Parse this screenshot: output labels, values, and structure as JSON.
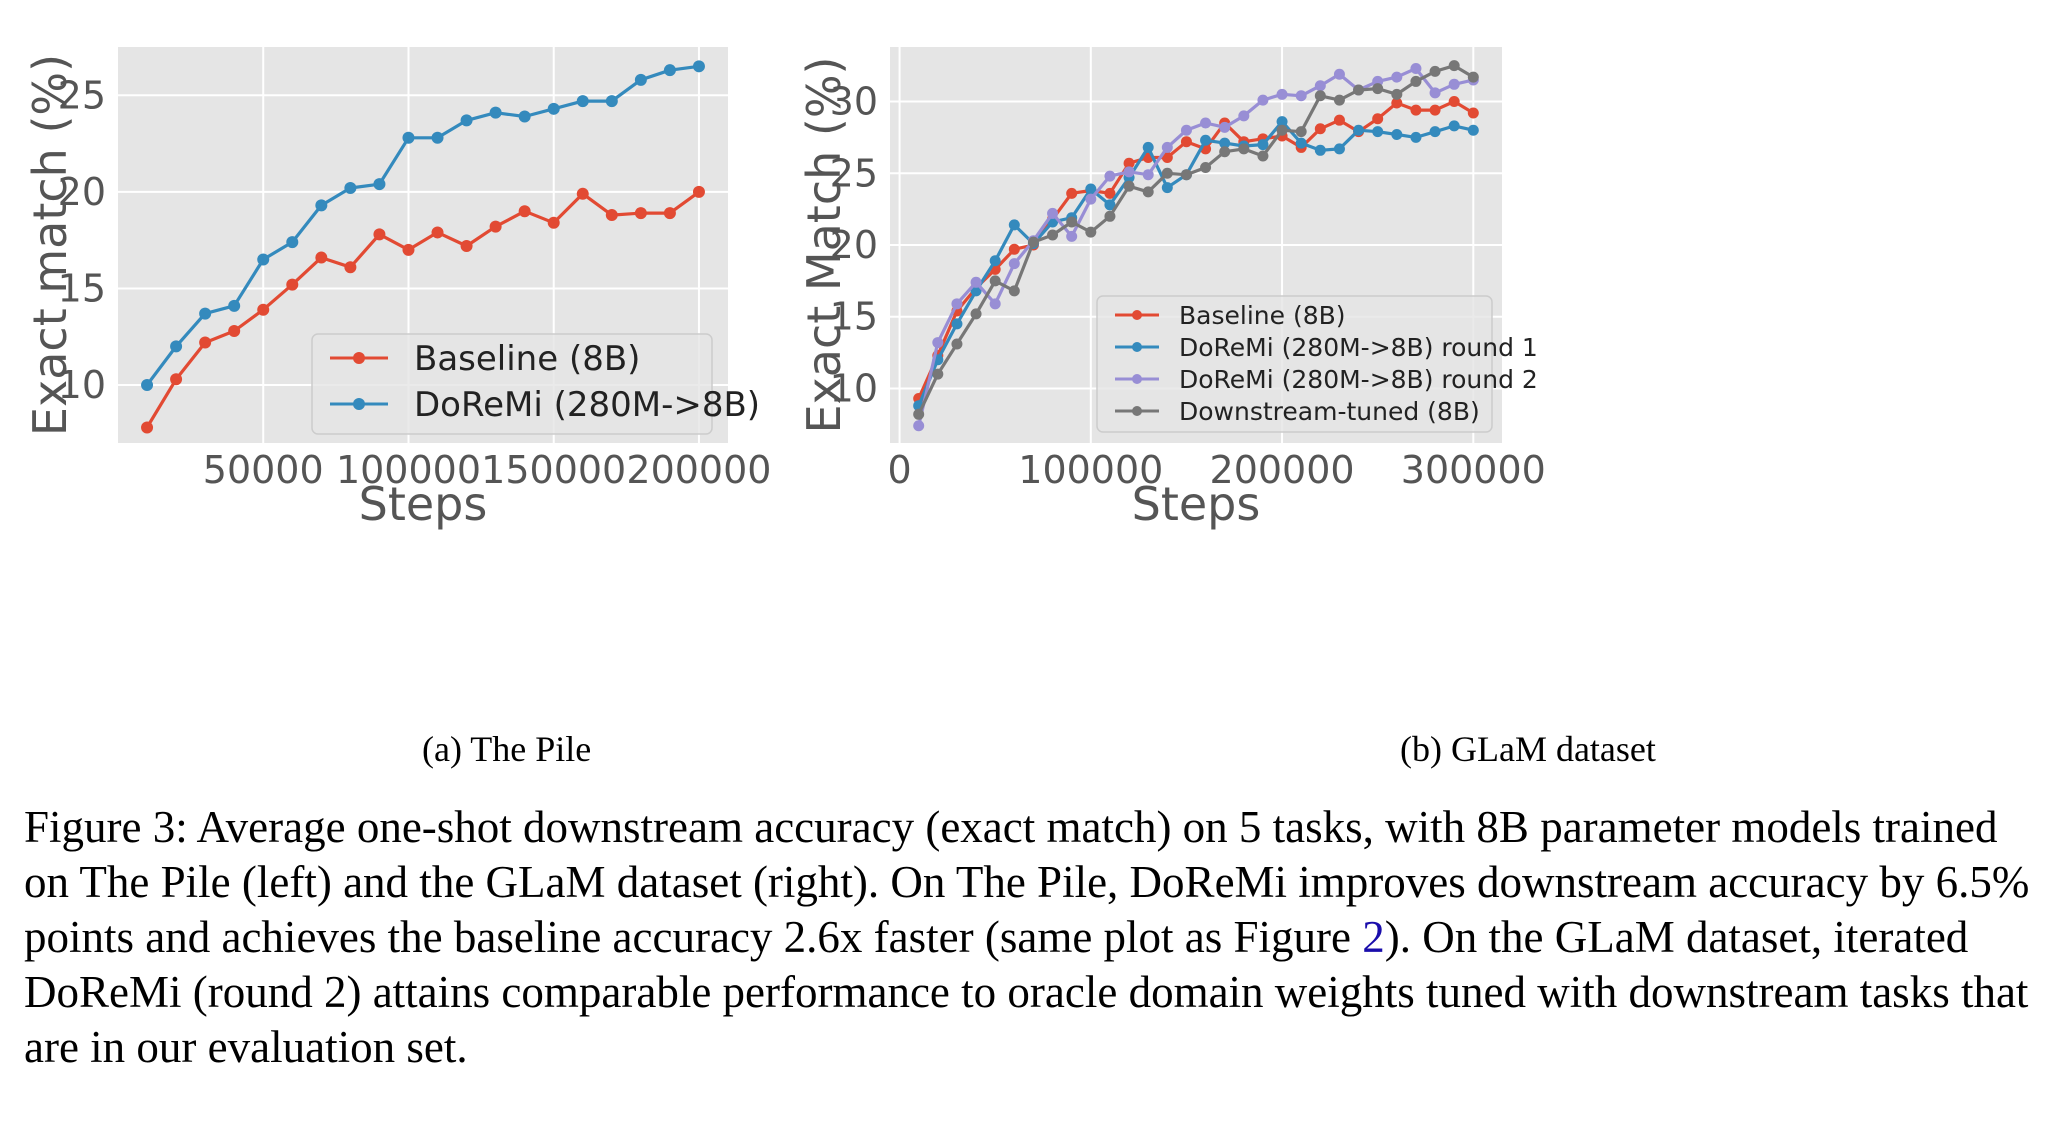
{
  "chart_data": [
    {
      "type": "line",
      "caption": "(a) The Pile",
      "xlabel": "Steps",
      "ylabel": "Exact match (%)",
      "xlim": [
        0,
        210000
      ],
      "ylim": [
        7,
        27.5
      ],
      "xticks": [
        50000,
        100000,
        150000,
        200000
      ],
      "xtick_labels": [
        "50000",
        "100000",
        "150000",
        "200000"
      ],
      "yticks": [
        10,
        15,
        20,
        25
      ],
      "ytick_labels": [
        "10",
        "15",
        "20",
        "25"
      ],
      "grid": true,
      "legend_position": "bottom-right",
      "x": [
        10000,
        20000,
        30000,
        40000,
        50000,
        60000,
        70000,
        80000,
        90000,
        100000,
        110000,
        120000,
        130000,
        140000,
        150000,
        160000,
        170000,
        180000,
        190000,
        200000
      ],
      "series": [
        {
          "name": "Baseline (8B)",
          "color": "#e24a33",
          "values": [
            7.8,
            10.3,
            12.2,
            12.8,
            13.9,
            15.2,
            16.6,
            16.1,
            17.8,
            17.0,
            17.9,
            17.2,
            18.2,
            19.0,
            18.4,
            19.9,
            18.8,
            18.9,
            18.9,
            20.0
          ]
        },
        {
          "name": "DoReMi (280M->8B)",
          "color": "#348abd",
          "values": [
            10.0,
            12.0,
            13.7,
            14.1,
            16.5,
            17.4,
            19.3,
            20.2,
            20.4,
            22.8,
            22.8,
            23.7,
            24.1,
            23.9,
            24.3,
            24.7,
            24.7,
            25.8,
            26.3,
            26.5
          ]
        }
      ]
    },
    {
      "type": "line",
      "caption": "(b) GLaM dataset",
      "xlabel": "Steps",
      "ylabel": "Exact Match (%)",
      "xlim": [
        -5000,
        315000
      ],
      "ylim": [
        6.2,
        33.8
      ],
      "xticks": [
        0,
        100000,
        200000,
        300000
      ],
      "xtick_labels": [
        "0",
        "100000",
        "200000",
        "300000"
      ],
      "yticks": [
        10,
        15,
        20,
        25,
        30
      ],
      "ytick_labels": [
        "10",
        "15",
        "20",
        "25",
        "30"
      ],
      "grid": true,
      "legend_position": "center-right",
      "x": [
        10000,
        20000,
        30000,
        40000,
        50000,
        60000,
        70000,
        80000,
        90000,
        100000,
        110000,
        120000,
        130000,
        140000,
        150000,
        160000,
        170000,
        180000,
        190000,
        200000,
        210000,
        220000,
        230000,
        240000,
        250000,
        260000,
        270000,
        280000,
        290000,
        300000
      ],
      "series": [
        {
          "name": "Baseline (8B)",
          "color": "#e24a33",
          "values": [
            9.3,
            12.3,
            15.4,
            17.0,
            18.3,
            19.7,
            20.0,
            21.8,
            23.6,
            23.8,
            23.6,
            25.7,
            26.1,
            26.1,
            27.2,
            26.7,
            28.5,
            27.2,
            27.4,
            27.6,
            26.8,
            28.1,
            28.7,
            27.9,
            28.8,
            29.9,
            29.4,
            29.4,
            30.0,
            29.2
          ]
        },
        {
          "name": "DoReMi (280M->8B) round 1",
          "color": "#348abd",
          "values": [
            8.8,
            12.0,
            14.5,
            16.8,
            18.9,
            21.4,
            20.1,
            21.6,
            21.9,
            23.9,
            22.8,
            24.7,
            26.8,
            24.0,
            24.9,
            27.3,
            27.1,
            26.9,
            27.0,
            28.6,
            27.1,
            26.6,
            26.7,
            28.0,
            27.9,
            27.7,
            27.5,
            27.9,
            28.3,
            28.0
          ]
        },
        {
          "name": "DoReMi (280M->8B) round 2",
          "color": "#988ed5",
          "values": [
            7.4,
            13.2,
            15.9,
            17.4,
            15.9,
            18.7,
            20.3,
            22.2,
            20.6,
            23.2,
            24.8,
            25.1,
            24.9,
            26.8,
            28.0,
            28.5,
            28.2,
            29.0,
            30.1,
            30.5,
            30.4,
            31.1,
            31.9,
            30.8,
            31.4,
            31.7,
            32.3,
            30.6,
            31.2,
            31.5
          ]
        },
        {
          "name": "Downstream-tuned (8B)",
          "color": "#777777",
          "values": [
            8.2,
            11.0,
            13.1,
            15.2,
            17.5,
            16.8,
            20.2,
            20.7,
            21.6,
            20.9,
            22.0,
            24.1,
            23.7,
            25.0,
            24.9,
            25.4,
            26.5,
            26.7,
            26.2,
            28.0,
            27.9,
            30.4,
            30.1,
            30.8,
            30.9,
            30.5,
            31.4,
            32.1,
            32.5,
            31.7
          ]
        }
      ]
    }
  ],
  "figure_caption": {
    "prefix": "Figure 3:  Average one-shot downstream accuracy (exact match) on 5 tasks, with 8B parameter models trained on The Pile (left) and the GLaM dataset (right).  On The Pile, DoReMi improves downstream accuracy by 6.5% points and achieves the baseline accuracy 2.6x faster (same plot as Figure ",
    "ref": "2",
    "suffix": ").  On the GLaM dataset, iterated DoReMi (round 2) attains comparable performance to oracle domain weights tuned with downstream tasks that are in our evaluation set."
  }
}
